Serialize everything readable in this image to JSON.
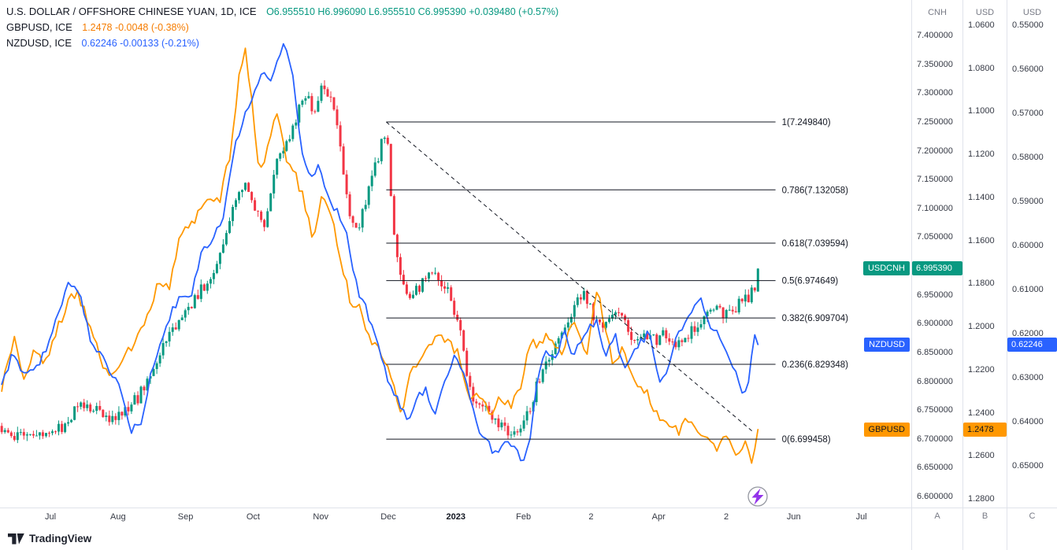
{
  "legend": {
    "rows": [
      {
        "title": "U.S. DOLLAR / OFFSHORE CHINESE YUAN, 1D, ICE",
        "quote": "O6.955510 H6.996090 L6.955510 C6.995390 +0.039480 (+0.57%)",
        "color": "#089981"
      },
      {
        "title": "GBPUSD, ICE",
        "quote": "1.2478 -0.0048 (-0.38%)",
        "color": "#f57c00"
      },
      {
        "title": "NZDUSD, ICE",
        "quote": "0.62246 -0.00133 (-0.21%)",
        "color": "#2962ff"
      }
    ]
  },
  "colors": {
    "up": "#089981",
    "down": "#f23645",
    "gbpusd": "#ff9800",
    "nzdusd": "#2962ff",
    "fib": "#131722",
    "flash": "#9333ea"
  },
  "axes": {
    "cnh": {
      "header": "CNH",
      "scale_letter": "A",
      "ticks": [
        "7.400000",
        "7.350000",
        "7.300000",
        "7.250000",
        "7.200000",
        "7.150000",
        "7.100000",
        "7.050000",
        "7.000000",
        "6.950000",
        "6.900000",
        "6.850000",
        "6.800000",
        "6.750000",
        "6.700000",
        "6.650000",
        "6.600000"
      ]
    },
    "gbp": {
      "header": "USD",
      "scale_letter": "B",
      "ticks": [
        "1.0600",
        "1.0800",
        "1.1000",
        "1.1200",
        "1.1400",
        "1.1600",
        "1.1800",
        "1.2000",
        "1.2200",
        "1.2400",
        "1.2600",
        "1.2800"
      ]
    },
    "nzd": {
      "header": "USD",
      "scale_letter": "C",
      "ticks": [
        "0.55000",
        "0.56000",
        "0.57000",
        "0.58000",
        "0.59000",
        "0.60000",
        "0.61000",
        "0.62000",
        "0.63000",
        "0.64000",
        "0.65000"
      ]
    }
  },
  "time_axis": {
    "labels": [
      "Jul",
      "Aug",
      "Sep",
      "Oct",
      "Nov",
      "Dec",
      "2023",
      "Feb",
      "2",
      "Apr",
      "2",
      "Jun",
      "Jul"
    ]
  },
  "price_labels": [
    {
      "symbol": "USDCNH",
      "value": "6.995390",
      "num": 6.99539,
      "scale": "cnh",
      "bg": "#089981",
      "fg": "#ffffff"
    },
    {
      "symbol": "NZDUSD",
      "value": "0.62246",
      "num": 0.62246,
      "scale": "nzd",
      "bg": "#2962ff",
      "fg": "#ffffff"
    },
    {
      "symbol": "GBPUSD",
      "value": "1.2478",
      "num": 1.2478,
      "scale": "gbp",
      "bg": "#ff9800",
      "fg": "#131722"
    }
  ],
  "fib_levels": [
    {
      "label": "1(7.249840)",
      "value": 7.24984
    },
    {
      "label": "0.786(7.132058)",
      "value": 7.132058
    },
    {
      "label": "0.618(7.039594)",
      "value": 7.039594
    },
    {
      "label": "0.5(6.974649)",
      "value": 6.974649
    },
    {
      "label": "0.382(6.909704)",
      "value": 6.909704
    },
    {
      "label": "0.236(6.829348)",
      "value": 6.829348
    },
    {
      "label": "0(6.699458)",
      "value": 6.699458
    }
  ],
  "logo": {
    "text": "TradingView"
  },
  "chart_data": {
    "type": "mixed",
    "title": "USDCNH daily candlesticks with GBPUSD and NZDUSD comparison lines on inverted USD scales, plus Fibonacci retracement 6.699458-7.249840 and falling dashed trendline",
    "x_range": {
      "start_month": -0.72,
      "end_month": 10.47,
      "month_index_zero": "Jul 2022"
    },
    "scales": {
      "cnh": {
        "min": 6.6,
        "max": 7.4,
        "inverted": false
      },
      "gbp": {
        "min": 1.06,
        "max": 1.28,
        "inverted": true
      },
      "nzd": {
        "min": 0.55,
        "max": 0.65,
        "inverted": true
      }
    },
    "fib_span_months": [
      4.97,
      10.73
    ],
    "trendline": {
      "from": [
        4.97,
        7.2498
      ],
      "to": [
        10.4,
        6.712
      ],
      "style": "dashed"
    },
    "series": [
      {
        "name": "USDCNH",
        "type": "candlestick",
        "scale": "cnh",
        "last_ohlc": [
          6.95551,
          6.99609,
          6.95551,
          6.99539
        ],
        "anchors": [
          [
            -0.72,
            6.718
          ],
          [
            -0.5,
            6.7
          ],
          [
            -0.3,
            6.713
          ],
          [
            -0.1,
            6.698
          ],
          [
            0.1,
            6.712
          ],
          [
            0.3,
            6.74
          ],
          [
            0.5,
            6.763
          ],
          [
            0.7,
            6.749
          ],
          [
            0.9,
            6.738
          ],
          [
            1.1,
            6.753
          ],
          [
            1.3,
            6.772
          ],
          [
            1.5,
            6.818
          ],
          [
            1.7,
            6.872
          ],
          [
            1.9,
            6.898
          ],
          [
            2.1,
            6.932
          ],
          [
            2.3,
            6.972
          ],
          [
            2.5,
            7.012
          ],
          [
            2.7,
            7.105
          ],
          [
            2.85,
            7.146
          ],
          [
            3.0,
            7.112
          ],
          [
            3.15,
            7.068
          ],
          [
            3.35,
            7.182
          ],
          [
            3.55,
            7.232
          ],
          [
            3.75,
            7.298
          ],
          [
            3.9,
            7.272
          ],
          [
            4.05,
            7.318
          ],
          [
            4.2,
            7.268
          ],
          [
            4.35,
            7.152
          ],
          [
            4.5,
            7.048
          ],
          [
            4.65,
            7.108
          ],
          [
            4.8,
            7.168
          ],
          [
            4.97,
            7.243
          ],
          [
            5.07,
            7.068
          ],
          [
            5.17,
            6.982
          ],
          [
            5.3,
            6.952
          ],
          [
            5.45,
            6.963
          ],
          [
            5.6,
            6.978
          ],
          [
            5.75,
            6.982
          ],
          [
            5.9,
            6.952
          ],
          [
            6.05,
            6.898
          ],
          [
            6.2,
            6.782
          ],
          [
            6.35,
            6.758
          ],
          [
            6.5,
            6.742
          ],
          [
            6.65,
            6.722
          ],
          [
            6.78,
            6.705
          ],
          [
            6.92,
            6.718
          ],
          [
            7.05,
            6.742
          ],
          [
            7.2,
            6.792
          ],
          [
            7.35,
            6.838
          ],
          [
            7.5,
            6.872
          ],
          [
            7.65,
            6.908
          ],
          [
            7.8,
            6.942
          ],
          [
            7.92,
            6.948
          ],
          [
            8.05,
            6.905
          ],
          [
            8.2,
            6.898
          ],
          [
            8.35,
            6.932
          ],
          [
            8.5,
            6.905
          ],
          [
            8.65,
            6.868
          ],
          [
            8.8,
            6.885
          ],
          [
            8.95,
            6.872
          ],
          [
            9.1,
            6.882
          ],
          [
            9.25,
            6.868
          ],
          [
            9.4,
            6.875
          ],
          [
            9.55,
            6.895
          ],
          [
            9.7,
            6.918
          ],
          [
            9.85,
            6.928
          ],
          [
            10.0,
            6.915
          ],
          [
            10.15,
            6.928
          ],
          [
            10.28,
            6.942
          ],
          [
            10.38,
            6.952
          ],
          [
            10.47,
            6.975
          ]
        ]
      },
      {
        "name": "GBPUSD",
        "type": "line",
        "scale": "gbp",
        "color": "#ff9800",
        "last": 1.2478,
        "anchors": [
          [
            -0.72,
            1.23
          ],
          [
            -0.55,
            1.205
          ],
          [
            -0.4,
            1.222
          ],
          [
            -0.25,
            1.212
          ],
          [
            -0.1,
            1.217
          ],
          [
            0.05,
            1.208
          ],
          [
            0.2,
            1.192
          ],
          [
            0.4,
            1.183
          ],
          [
            0.55,
            1.198
          ],
          [
            0.7,
            1.212
          ],
          [
            0.85,
            1.222
          ],
          [
            1.0,
            1.217
          ],
          [
            1.15,
            1.212
          ],
          [
            1.3,
            1.205
          ],
          [
            1.45,
            1.193
          ],
          [
            1.6,
            1.181
          ],
          [
            1.75,
            1.183
          ],
          [
            1.9,
            1.162
          ],
          [
            2.05,
            1.152
          ],
          [
            2.2,
            1.148
          ],
          [
            2.35,
            1.138
          ],
          [
            2.5,
            1.143
          ],
          [
            2.65,
            1.122
          ],
          [
            2.78,
            1.088
          ],
          [
            2.87,
            1.07
          ],
          [
            2.97,
            1.092
          ],
          [
            3.1,
            1.13
          ],
          [
            3.22,
            1.118
          ],
          [
            3.35,
            1.098
          ],
          [
            3.5,
            1.122
          ],
          [
            3.62,
            1.128
          ],
          [
            3.75,
            1.142
          ],
          [
            3.88,
            1.158
          ],
          [
            4.02,
            1.138
          ],
          [
            4.15,
            1.148
          ],
          [
            4.3,
            1.172
          ],
          [
            4.45,
            1.188
          ],
          [
            4.6,
            1.192
          ],
          [
            4.75,
            1.208
          ],
          [
            4.9,
            1.213
          ],
          [
            5.05,
            1.222
          ],
          [
            5.2,
            1.242
          ],
          [
            5.32,
            1.222
          ],
          [
            5.45,
            1.215
          ],
          [
            5.6,
            1.208
          ],
          [
            5.75,
            1.202
          ],
          [
            5.9,
            1.208
          ],
          [
            6.05,
            1.212
          ],
          [
            6.2,
            1.232
          ],
          [
            6.35,
            1.23
          ],
          [
            6.5,
            1.242
          ],
          [
            6.65,
            1.232
          ],
          [
            6.8,
            1.238
          ],
          [
            6.95,
            1.23
          ],
          [
            7.08,
            1.205
          ],
          [
            7.2,
            1.212
          ],
          [
            7.32,
            1.202
          ],
          [
            7.45,
            1.207
          ],
          [
            7.58,
            1.212
          ],
          [
            7.7,
            1.198
          ],
          [
            7.82,
            1.204
          ],
          [
            7.95,
            1.211
          ],
          [
            8.08,
            1.183
          ],
          [
            8.2,
            1.198
          ],
          [
            8.32,
            1.218
          ],
          [
            8.45,
            1.211
          ],
          [
            8.58,
            1.222
          ],
          [
            8.72,
            1.228
          ],
          [
            8.85,
            1.232
          ],
          [
            9.0,
            1.242
          ],
          [
            9.15,
            1.245
          ],
          [
            9.28,
            1.25
          ],
          [
            9.4,
            1.24
          ],
          [
            9.52,
            1.245
          ],
          [
            9.65,
            1.25
          ],
          [
            9.78,
            1.252
          ],
          [
            9.9,
            1.257
          ],
          [
            10.02,
            1.25
          ],
          [
            10.15,
            1.262
          ],
          [
            10.28,
            1.255
          ],
          [
            10.38,
            1.264
          ],
          [
            10.47,
            1.2478
          ]
        ]
      },
      {
        "name": "NZDUSD",
        "type": "line",
        "scale": "nzd",
        "color": "#2962ff",
        "last": 0.62246,
        "anchors": [
          [
            -0.72,
            0.6315
          ],
          [
            -0.55,
            0.6245
          ],
          [
            -0.38,
            0.6295
          ],
          [
            -0.2,
            0.6275
          ],
          [
            -0.05,
            0.6235
          ],
          [
            0.1,
            0.6165
          ],
          [
            0.28,
            0.6085
          ],
          [
            0.45,
            0.6125
          ],
          [
            0.6,
            0.6215
          ],
          [
            0.75,
            0.6255
          ],
          [
            0.9,
            0.6285
          ],
          [
            1.05,
            0.6325
          ],
          [
            1.2,
            0.6425
          ],
          [
            1.35,
            0.6395
          ],
          [
            1.5,
            0.6285
          ],
          [
            1.65,
            0.6205
          ],
          [
            1.8,
            0.6145
          ],
          [
            1.95,
            0.6115
          ],
          [
            2.1,
            0.6105
          ],
          [
            2.25,
            0.6005
          ],
          [
            2.4,
            0.5985
          ],
          [
            2.55,
            0.5935
          ],
          [
            2.7,
            0.5795
          ],
          [
            2.85,
            0.5715
          ],
          [
            3.0,
            0.5655
          ],
          [
            3.12,
            0.5605
          ],
          [
            3.25,
            0.5625
          ],
          [
            3.38,
            0.5565
          ],
          [
            3.48,
            0.5545
          ],
          [
            3.6,
            0.5625
          ],
          [
            3.72,
            0.5785
          ],
          [
            3.85,
            0.5845
          ],
          [
            3.97,
            0.5815
          ],
          [
            4.1,
            0.5885
          ],
          [
            4.25,
            0.5925
          ],
          [
            4.4,
            0.5985
          ],
          [
            4.55,
            0.6105
          ],
          [
            4.7,
            0.6155
          ],
          [
            4.85,
            0.6225
          ],
          [
            5.0,
            0.6305
          ],
          [
            5.15,
            0.6355
          ],
          [
            5.28,
            0.6395
          ],
          [
            5.42,
            0.6345
          ],
          [
            5.55,
            0.6325
          ],
          [
            5.7,
            0.6385
          ],
          [
            5.85,
            0.6305
          ],
          [
            6.0,
            0.6245
          ],
          [
            6.15,
            0.6305
          ],
          [
            6.3,
            0.6405
          ],
          [
            6.45,
            0.6445
          ],
          [
            6.6,
            0.6475
          ],
          [
            6.72,
            0.6435
          ],
          [
            6.85,
            0.6455
          ],
          [
            6.98,
            0.649
          ],
          [
            7.1,
            0.6445
          ],
          [
            7.22,
            0.6285
          ],
          [
            7.35,
            0.6235
          ],
          [
            7.48,
            0.6265
          ],
          [
            7.6,
            0.6185
          ],
          [
            7.72,
            0.6245
          ],
          [
            7.85,
            0.6215
          ],
          [
            7.97,
            0.6185
          ],
          [
            8.1,
            0.6175
          ],
          [
            8.22,
            0.6255
          ],
          [
            8.35,
            0.6195
          ],
          [
            8.48,
            0.6285
          ],
          [
            8.6,
            0.6255
          ],
          [
            8.72,
            0.6225
          ],
          [
            8.85,
            0.6195
          ],
          [
            9.0,
            0.6305
          ],
          [
            9.12,
            0.6285
          ],
          [
            9.25,
            0.6205
          ],
          [
            9.38,
            0.6175
          ],
          [
            9.5,
            0.6145
          ],
          [
            9.62,
            0.6125
          ],
          [
            9.75,
            0.6185
          ],
          [
            9.88,
            0.6205
          ],
          [
            10.0,
            0.6245
          ],
          [
            10.12,
            0.6285
          ],
          [
            10.25,
            0.6345
          ],
          [
            10.35,
            0.6295
          ],
          [
            10.42,
            0.6195
          ],
          [
            10.47,
            0.62246
          ]
        ]
      }
    ]
  }
}
